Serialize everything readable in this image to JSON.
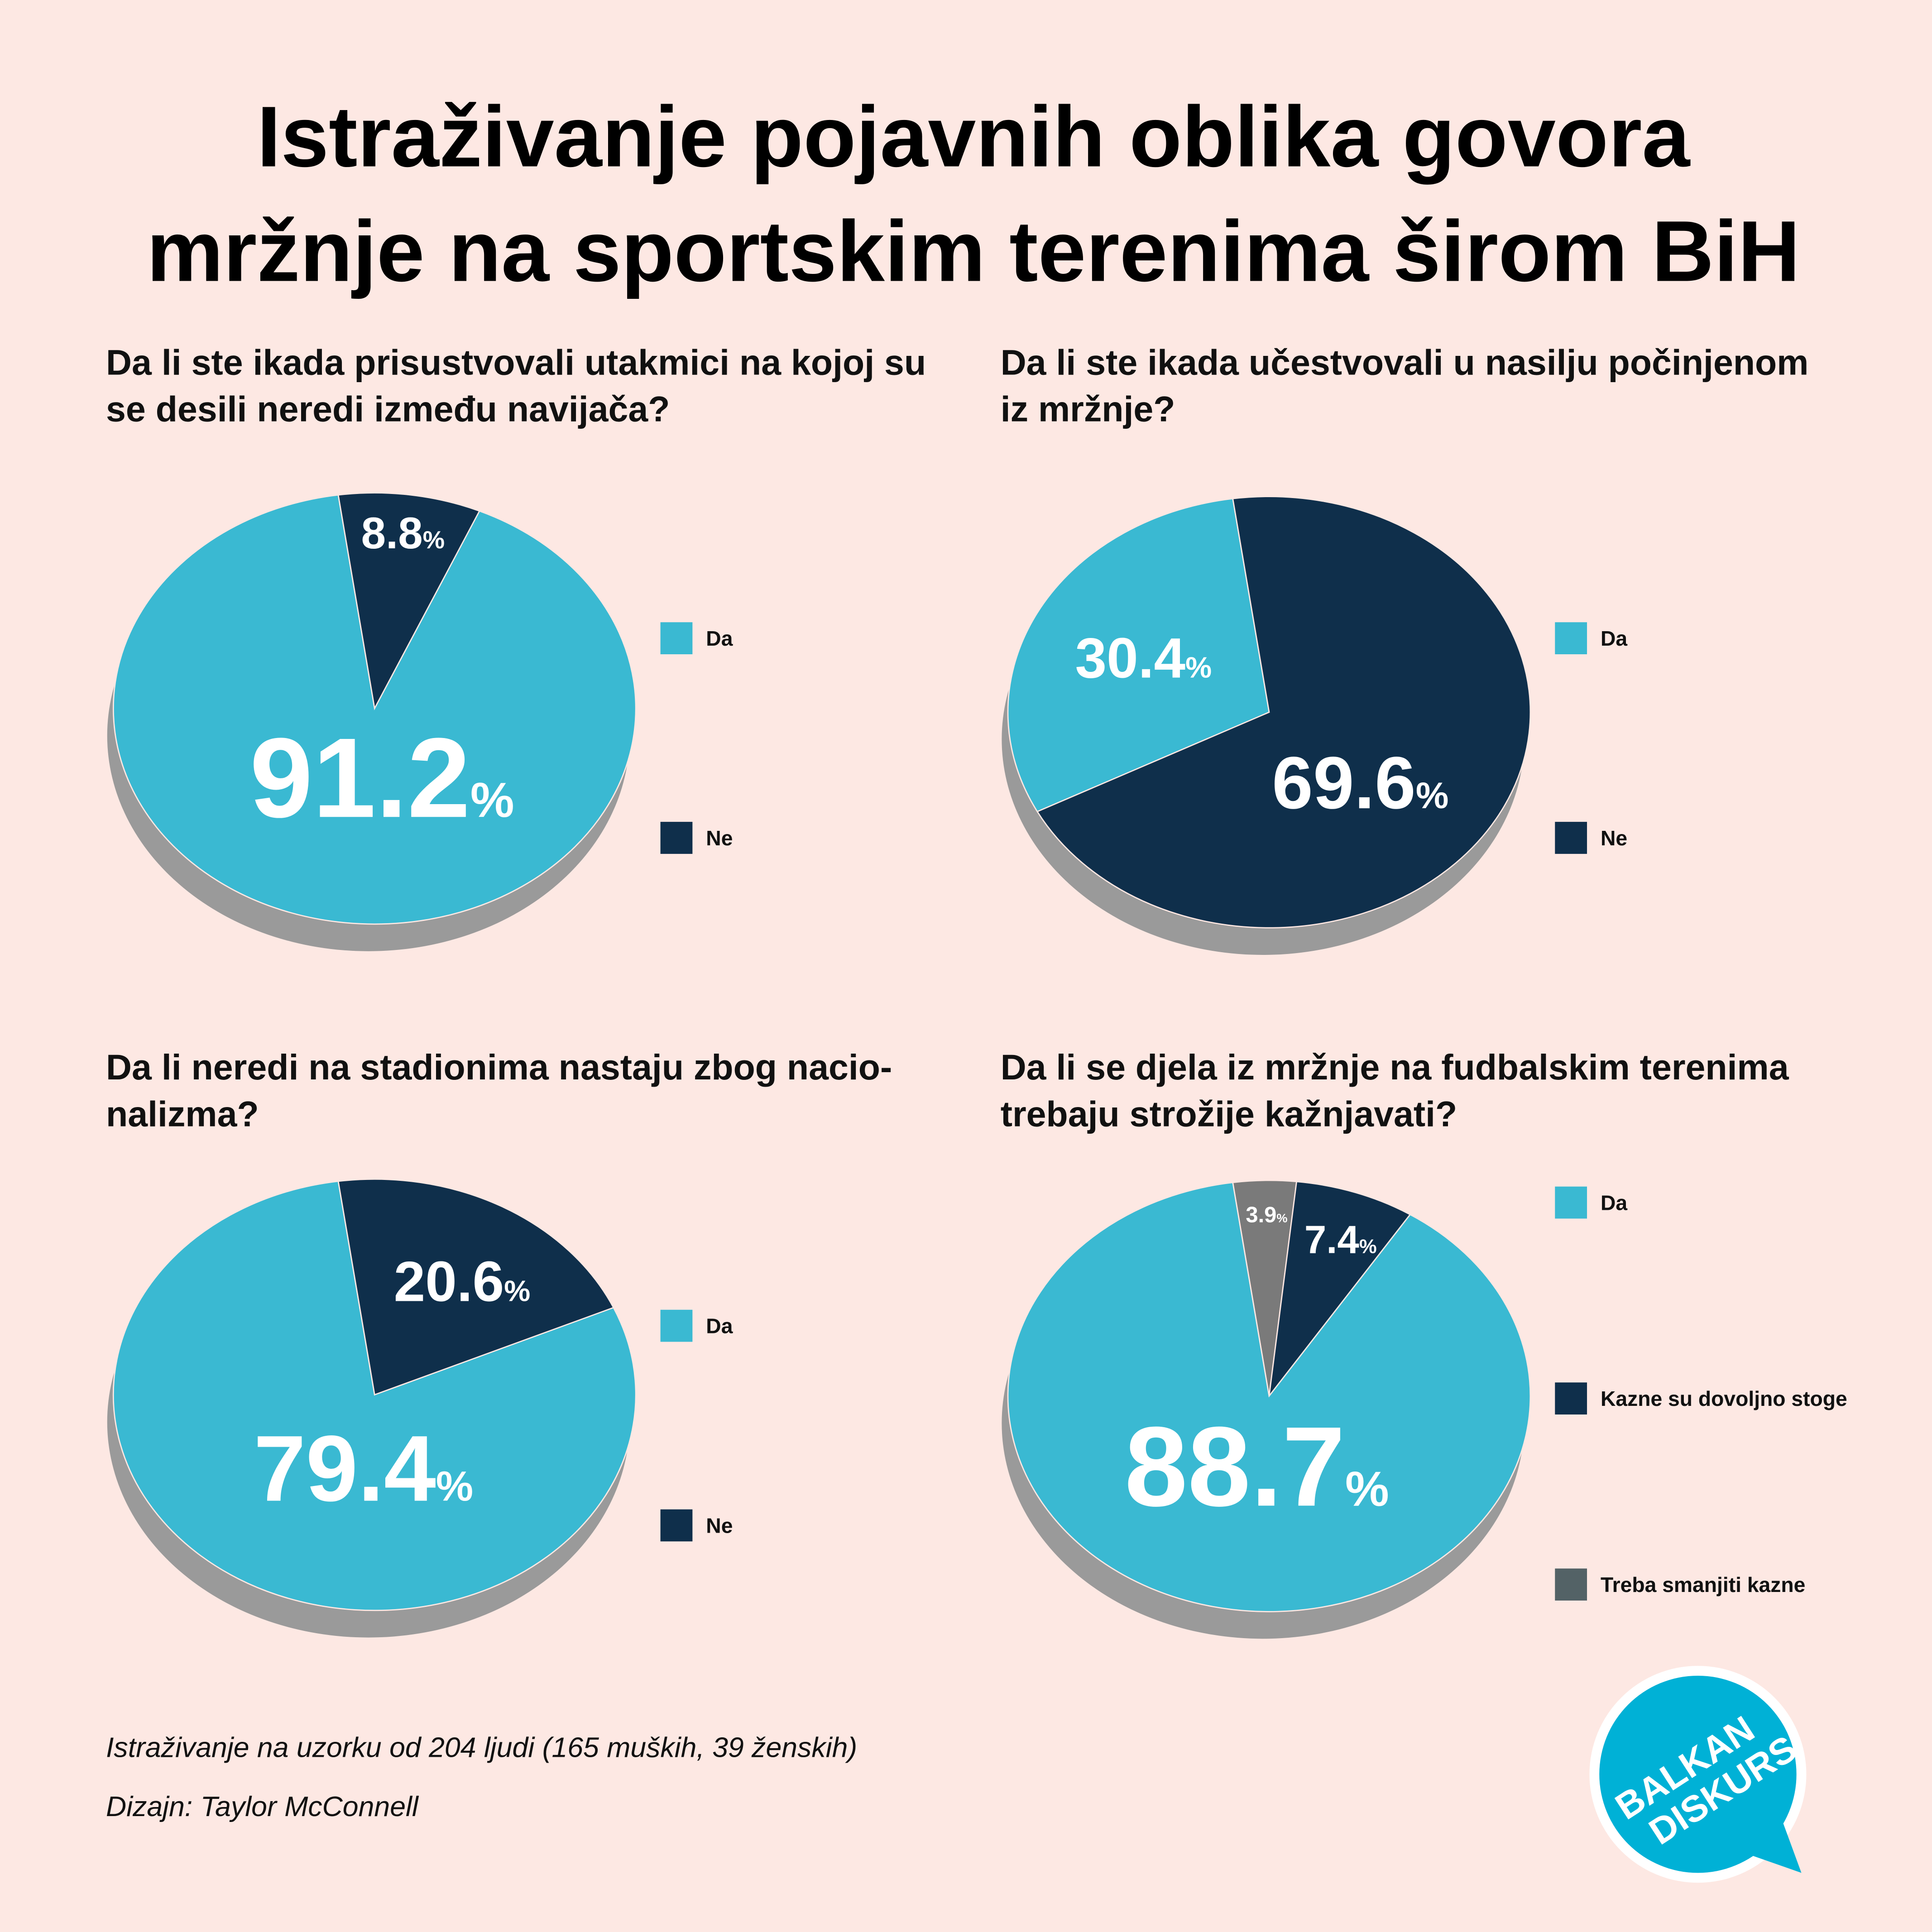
{
  "title_line1": "Istraživanje pojavnih oblika govora",
  "title_line2": "mržnje na sportskim terenima širom BiH",
  "colors": {
    "background": "#fde8e3",
    "da": "#3ab9d2",
    "ne": "#0f2f4b",
    "reduce": "#7a7a7a",
    "reduce_legend": "#536266",
    "shadow": "#9a9a9a",
    "logo": "#00b1d6"
  },
  "chart_data": [
    {
      "type": "pie",
      "title_lines": [
        "Da li ste ikada prisustvovali utakmici na kojoj su",
        "se desili neredi između navijača?"
      ],
      "slices": [
        {
          "label": "Ne",
          "value": 8.8,
          "text": "8.8"
        },
        {
          "label": "Da",
          "value": 91.2,
          "text": "91.2"
        }
      ],
      "legend": [
        "Da",
        "Ne"
      ],
      "legend_placement": "right"
    },
    {
      "type": "pie",
      "title_lines": [
        "Da li ste ikada učestvovali u nasilju počinjenom",
        "iz mržnje?"
      ],
      "slices": [
        {
          "label": "Ne",
          "value": 69.6,
          "text": "69.6"
        },
        {
          "label": "Da",
          "value": 30.4,
          "text": "30.4"
        }
      ],
      "legend": [
        "Da",
        "Ne"
      ],
      "legend_placement": "right"
    },
    {
      "type": "pie",
      "title_lines": [
        "Da li neredi na stadionima nastaju zbog nacio-",
        "nalizma?"
      ],
      "slices": [
        {
          "label": "Ne",
          "value": 20.6,
          "text": "20.6"
        },
        {
          "label": "Da",
          "value": 79.4,
          "text": "79.4"
        }
      ],
      "legend": [
        "Da",
        "Ne"
      ],
      "legend_placement": "right"
    },
    {
      "type": "pie",
      "title_lines": [
        "Da li se djela iz mržnje na fudbalskim terenima",
        "trebaju strožije kažnjavati?"
      ],
      "slices": [
        {
          "label": "Treba smanjiti kazne",
          "value": 3.9,
          "text": "3.9"
        },
        {
          "label": "Kazne su dovoljno stoge",
          "value": 7.4,
          "text": "7.4"
        },
        {
          "label": "Da",
          "value": 88.7,
          "text": "88.7"
        }
      ],
      "legend": [
        "Da",
        "Kazne su dovoljno stoge",
        "Treba smanjiti kazne"
      ],
      "legend_placement": "right"
    }
  ],
  "percent_sign": "%",
  "footer": {
    "sample": "Istraživanje na uzorku od 204 ljudi (165 muških, 39 ženskih)",
    "design": "Dizajn: Taylor McConnell"
  },
  "logo": {
    "line1": "BALKAN",
    "line2": "DISKURS"
  }
}
